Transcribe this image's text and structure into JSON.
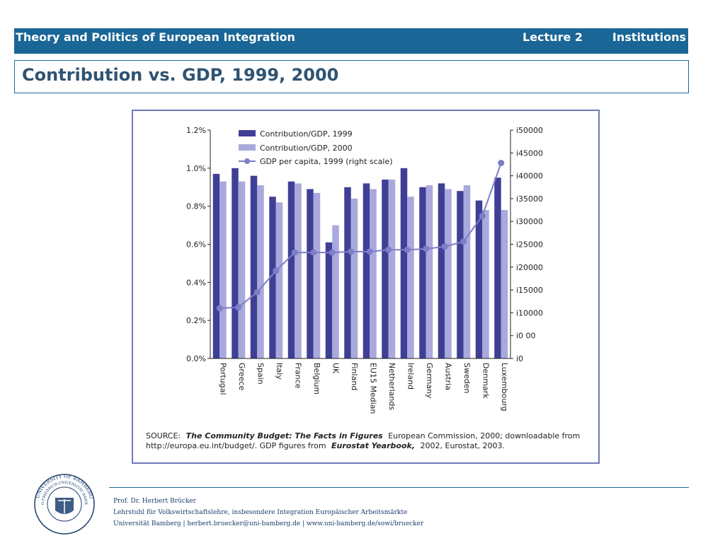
{
  "header": {
    "course": "Theory and Politics of European Integration",
    "lecture": "Lecture 2",
    "topic": "Institutions"
  },
  "slide": {
    "title": "Contribution vs. GDP, 1999, 2000"
  },
  "colors": {
    "header_bg": "#1a6696",
    "title_text": "#2f5372",
    "series_1999": "#3f3f96",
    "series_2000": "#a9a9de",
    "gdp_line": "#7d7dc8",
    "frame": "#6f7ab8"
  },
  "chart_data": {
    "type": "bar",
    "categories": [
      "Portugal",
      "Greece",
      "Spain",
      "Italy",
      "France",
      "Belgium",
      "UK",
      "Finland",
      "EU15 Median",
      "Netherlands",
      "Ireland",
      "Germany",
      "Austria",
      "Sweden",
      "Denmark",
      "Luxembourg"
    ],
    "series": [
      {
        "name": "Contribution/GDP, 1999",
        "kind": "bar",
        "axis": "left",
        "values": [
          0.97,
          1.0,
          0.96,
          0.85,
          0.93,
          0.89,
          0.61,
          0.9,
          0.92,
          0.94,
          1.0,
          0.9,
          0.92,
          0.88,
          0.83,
          0.95
        ]
      },
      {
        "name": "Contribution/GDP, 2000",
        "kind": "bar",
        "axis": "left",
        "values": [
          0.93,
          0.93,
          0.91,
          0.82,
          0.92,
          0.87,
          0.7,
          0.84,
          0.89,
          0.94,
          0.85,
          0.91,
          0.89,
          0.91,
          0.78,
          0.78
        ]
      },
      {
        "name": "GDP per capita, 1999 (right scale)",
        "kind": "line",
        "axis": "right",
        "values": [
          11000,
          11200,
          14500,
          19200,
          23200,
          23200,
          23200,
          23400,
          23400,
          23800,
          23800,
          24000,
          24500,
          25600,
          31200,
          42800
        ]
      }
    ],
    "left_axis": {
      "ylim": [
        0,
        1.2
      ],
      "ticks": [
        "0.0%",
        "0.2%",
        "0.4%",
        "0.6%",
        "0.8%",
        "1.0%",
        "1.2%"
      ]
    },
    "right_axis": {
      "ylim": [
        0,
        50000
      ],
      "ticks": [
        "i0",
        "i0 00",
        "i10000",
        "i15000",
        "i20000",
        "i25000",
        "i30000",
        "i35000",
        "i40000",
        "i45000",
        "i50000"
      ]
    },
    "legend_position": "top-left",
    "grid": false,
    "source_label": "SOURCE:",
    "source_title": "The Community Budget: The Facts in Figures",
    "source_rest": "European Commission, 2000; downloadable from",
    "source_line2_a": "http://europa.eu.int/budget/. GDP figures from",
    "source_line2_b": "Eurostat Yearbook,",
    "source_line2_c": "2002, Eurostat, 2003."
  },
  "footer": {
    "name": "Prof. Dr. Herbert Brücker",
    "chair": "Lehrstuhl für Volkswirtschaftslehre, insbesondere Integration Europäischer Arbeitsmärkte",
    "contact": "Universität Bamberg | herbert.bruecker@uni-bamberg.de | www.uni-bamberg.de/sowi/bruecker"
  },
  "seal": {
    "outer_text": "UNIVERSITY OF BAMBERG",
    "inner_text": "OTTO-FRIEDRICH-UNIVERSITÄT BAMBERG"
  }
}
